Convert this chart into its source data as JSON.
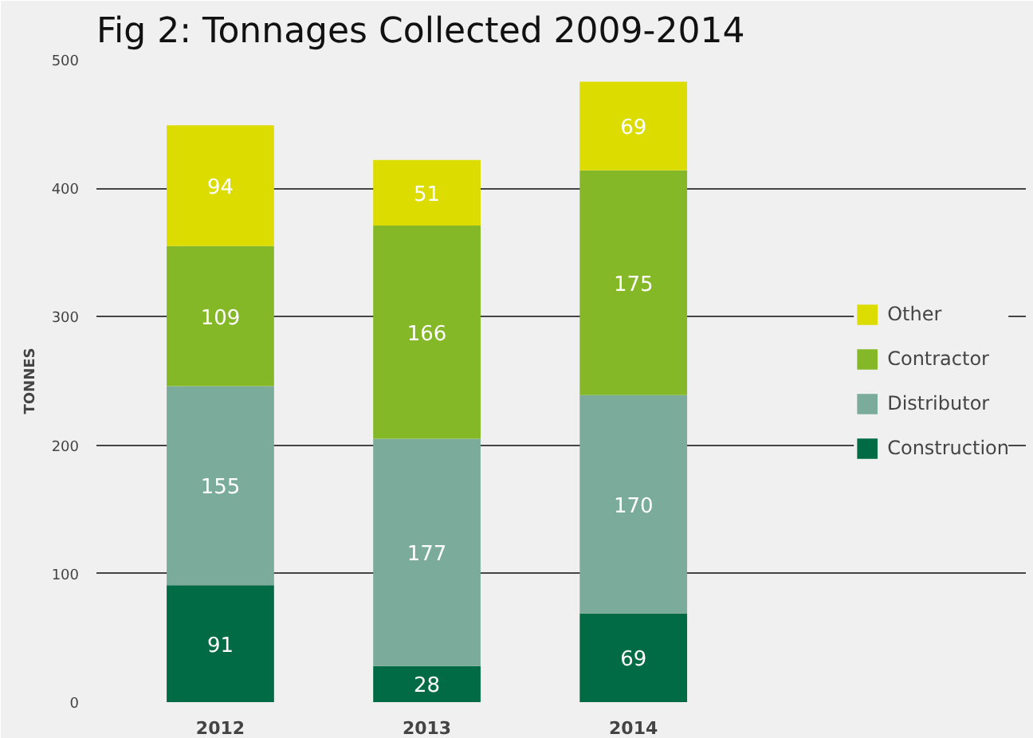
{
  "chart_data": {
    "type": "bar",
    "title": "Fig 2: Tonnages Collected 2009-2014",
    "ylabel": "TONNES",
    "categories": [
      "2012",
      "2013",
      "2014"
    ],
    "stacked": true,
    "series": [
      {
        "name": "Construction",
        "color": "#006b45",
        "values": [
          91,
          28,
          69
        ]
      },
      {
        "name": "Distributor",
        "color": "#7aab9b",
        "values": [
          155,
          177,
          170
        ]
      },
      {
        "name": "Contractor",
        "color": "#84b826",
        "values": [
          109,
          166,
          175
        ]
      },
      {
        "name": "Other",
        "color": "#dcdc00",
        "values": [
          94,
          51,
          69
        ]
      }
    ],
    "ylim": [
      0,
      500
    ],
    "yticks": [
      0,
      100,
      200,
      300,
      400,
      500
    ],
    "grid": "y",
    "legend": "right",
    "data_labels": true
  }
}
